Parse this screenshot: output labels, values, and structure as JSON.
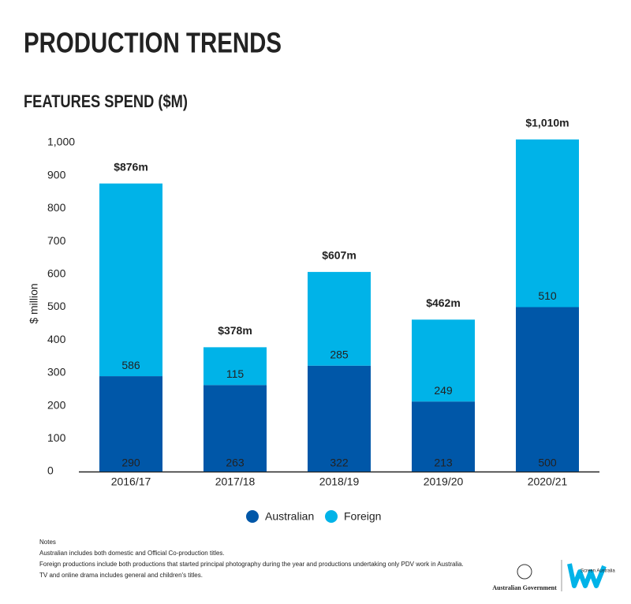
{
  "chart_data": {
    "type": "stacked_bar",
    "title": "PRODUCTION TRENDS",
    "subtitle": "FEATURES SPEND ($M)",
    "y_label": "$ million",
    "categories": [
      "2016/17",
      "2017/18",
      "2018/19",
      "2019/20",
      "2020/21"
    ],
    "series": [
      {
        "name": "Australian",
        "color": "#0057a8",
        "values": [
          290,
          263,
          322,
          213,
          500
        ]
      },
      {
        "name": "Foreign",
        "color": "#00b3e8",
        "values": [
          586,
          115,
          285,
          249,
          510
        ]
      }
    ],
    "totals": {
      "values": [
        876,
        378,
        607,
        462,
        1010
      ],
      "value_labels": [
        "$876m",
        "$378m",
        "$607m",
        "$462m",
        "$1,010m"
      ]
    },
    "ylim": [
      0,
      1000
    ],
    "yticks": [
      0,
      100,
      200,
      300,
      400,
      500,
      600,
      700,
      800,
      900,
      {
        "value": 1000,
        "label": "1,000"
      }
    ],
    "grid": false
  },
  "notes": {
    "heading": "Notes",
    "lines": [
      "Australian includes both domestic and Official Co-production titles.",
      "Foreign productions include both productions that started principal photography during the year and productions undertaking only PDV work in Australia.",
      "TV and online drama includes general and children's titles."
    ]
  },
  "footer": {
    "government": "Australian Government",
    "brand": "Screen Australia"
  }
}
